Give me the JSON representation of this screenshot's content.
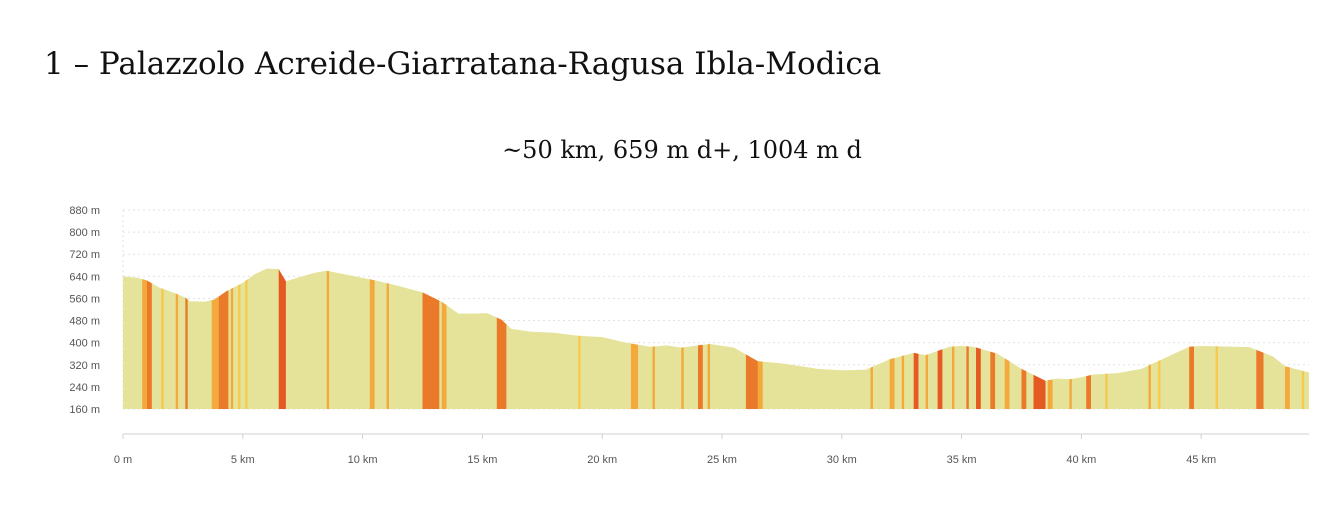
{
  "page": {
    "title": "1 – Palazzolo Acreide-Giarratana-Ragusa Ibla-Modica",
    "subtitle": "~50 km, 659 m d+, 1004 m d"
  },
  "chart_data": {
    "type": "area",
    "title": "",
    "xlabel": "",
    "ylabel": "",
    "xlim": [
      0,
      49.5
    ],
    "ylim": [
      160,
      880
    ],
    "grid": true,
    "x_ticks": [
      "0 m",
      "5 km",
      "10 km",
      "15 km",
      "20 km",
      "25 km",
      "30 km",
      "35 km",
      "40 km",
      "45 km"
    ],
    "x_tick_values": [
      0,
      5,
      10,
      15,
      20,
      25,
      30,
      35,
      40,
      45
    ],
    "y_ticks": [
      "880 m",
      "800 m",
      "720 m",
      "640 m",
      "560 m",
      "480 m",
      "400 m",
      "320 m",
      "240 m",
      "160 m"
    ],
    "y_tick_values": [
      880,
      800,
      720,
      640,
      560,
      480,
      400,
      320,
      240,
      160
    ],
    "colors": {
      "fill": "#e5e39a",
      "medium": "#f6c94f",
      "steep": "#f3a93c",
      "very_steep": "#ea7a2a",
      "extreme": "#e55a22",
      "axis": "#d0d0d0",
      "grid": "#e2e2e2"
    },
    "profile": [
      [
        0,
        640
      ],
      [
        0.6,
        635
      ],
      [
        1.0,
        625
      ],
      [
        1.5,
        600
      ],
      [
        2.2,
        578
      ],
      [
        2.6,
        563
      ],
      [
        2.8,
        550
      ],
      [
        3.4,
        548
      ],
      [
        3.8,
        555
      ],
      [
        4.3,
        585
      ],
      [
        5.0,
        617
      ],
      [
        5.5,
        648
      ],
      [
        6.0,
        668
      ],
      [
        6.5,
        666
      ],
      [
        6.8,
        622
      ],
      [
        7.5,
        640
      ],
      [
        8.0,
        653
      ],
      [
        8.5,
        660
      ],
      [
        9.5,
        643
      ],
      [
        10.5,
        626
      ],
      [
        11.5,
        605
      ],
      [
        12.5,
        582
      ],
      [
        13.3,
        548
      ],
      [
        14.0,
        505
      ],
      [
        14.5,
        505
      ],
      [
        15.2,
        507
      ],
      [
        15.8,
        483
      ],
      [
        16.2,
        450
      ],
      [
        17.0,
        440
      ],
      [
        18.0,
        436
      ],
      [
        19.0,
        425
      ],
      [
        20.0,
        420
      ],
      [
        21.0,
        400
      ],
      [
        22.0,
        385
      ],
      [
        22.7,
        390
      ],
      [
        23.3,
        382
      ],
      [
        24.0,
        390
      ],
      [
        24.5,
        395
      ],
      [
        25.5,
        382
      ],
      [
        26.5,
        333
      ],
      [
        27.5,
        325
      ],
      [
        28.5,
        312
      ],
      [
        29.0,
        305
      ],
      [
        30.0,
        300
      ],
      [
        31.0,
        302
      ],
      [
        32.0,
        340
      ],
      [
        33.0,
        363
      ],
      [
        33.5,
        355
      ],
      [
        34.5,
        385
      ],
      [
        35.0,
        388
      ],
      [
        35.5,
        385
      ],
      [
        36.5,
        360
      ],
      [
        37.5,
        305
      ],
      [
        38.5,
        262
      ],
      [
        39.0,
        270
      ],
      [
        39.5,
        268
      ],
      [
        40.0,
        275
      ],
      [
        40.5,
        285
      ],
      [
        41.5,
        290
      ],
      [
        42.5,
        305
      ],
      [
        43.5,
        345
      ],
      [
        44.5,
        385
      ],
      [
        45.0,
        388
      ],
      [
        46.0,
        386
      ],
      [
        47.0,
        384
      ],
      [
        48.0,
        350
      ],
      [
        48.5,
        315
      ],
      [
        49.5,
        292
      ]
    ],
    "slope_bands": [
      [
        0.8,
        1.0,
        "steep"
      ],
      [
        1.0,
        1.2,
        "very_steep"
      ],
      [
        1.6,
        1.7,
        "medium"
      ],
      [
        2.2,
        2.3,
        "steep"
      ],
      [
        2.6,
        2.7,
        "very_steep"
      ],
      [
        3.7,
        4.0,
        "steep"
      ],
      [
        4.0,
        4.4,
        "very_steep"
      ],
      [
        4.5,
        4.6,
        "steep"
      ],
      [
        4.8,
        4.9,
        "medium"
      ],
      [
        5.1,
        5.2,
        "medium"
      ],
      [
        6.5,
        6.8,
        "extreme"
      ],
      [
        8.5,
        8.6,
        "steep"
      ],
      [
        10.3,
        10.5,
        "steep"
      ],
      [
        11.0,
        11.1,
        "steep"
      ],
      [
        12.5,
        13.2,
        "very_steep"
      ],
      [
        13.3,
        13.5,
        "steep"
      ],
      [
        15.6,
        16.0,
        "very_steep"
      ],
      [
        19.0,
        19.1,
        "medium"
      ],
      [
        21.2,
        21.5,
        "steep"
      ],
      [
        22.1,
        22.2,
        "steep"
      ],
      [
        23.3,
        23.4,
        "steep"
      ],
      [
        24.0,
        24.2,
        "very_steep"
      ],
      [
        24.4,
        24.5,
        "steep"
      ],
      [
        26.0,
        26.5,
        "very_steep"
      ],
      [
        26.5,
        26.7,
        "steep"
      ],
      [
        31.2,
        31.3,
        "steep"
      ],
      [
        32.0,
        32.2,
        "steep"
      ],
      [
        32.5,
        32.6,
        "steep"
      ],
      [
        33.0,
        33.2,
        "extreme"
      ],
      [
        33.5,
        33.6,
        "steep"
      ],
      [
        34.0,
        34.2,
        "extreme"
      ],
      [
        34.6,
        34.7,
        "steep"
      ],
      [
        35.2,
        35.3,
        "very_steep"
      ],
      [
        35.6,
        35.8,
        "extreme"
      ],
      [
        36.2,
        36.4,
        "very_steep"
      ],
      [
        36.8,
        37.0,
        "steep"
      ],
      [
        37.5,
        37.7,
        "very_steep"
      ],
      [
        38.0,
        38.5,
        "extreme"
      ],
      [
        38.6,
        38.8,
        "steep"
      ],
      [
        39.5,
        39.6,
        "steep"
      ],
      [
        40.2,
        40.4,
        "very_steep"
      ],
      [
        41.0,
        41.1,
        "medium"
      ],
      [
        42.8,
        42.9,
        "steep"
      ],
      [
        43.2,
        43.3,
        "medium"
      ],
      [
        44.5,
        44.7,
        "very_steep"
      ],
      [
        45.6,
        45.7,
        "medium"
      ],
      [
        47.3,
        47.6,
        "very_steep"
      ],
      [
        48.5,
        48.7,
        "steep"
      ],
      [
        49.2,
        49.3,
        "medium"
      ]
    ]
  }
}
